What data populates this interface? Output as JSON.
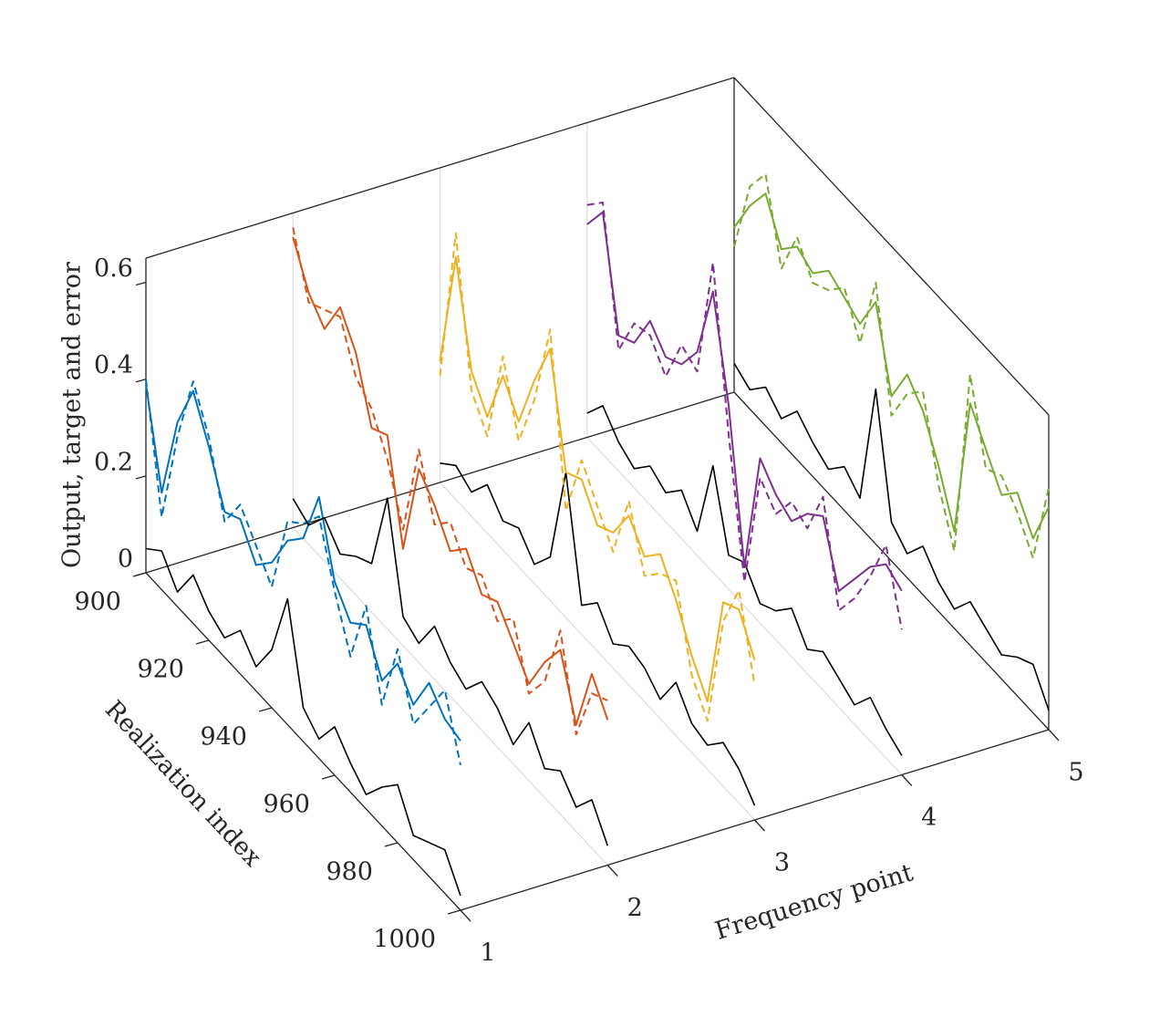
{
  "chart_data": {
    "type": "line3d",
    "zlabel": "Output, target and error",
    "xlabel": "Realization index",
    "ylabel": "Frequency point",
    "x": [
      900,
      905,
      910,
      915,
      920,
      925,
      930,
      935,
      940,
      945,
      950,
      955,
      960,
      965,
      970,
      975,
      980,
      985,
      990,
      995,
      1000
    ],
    "xlim": [
      900,
      1000
    ],
    "xticks": [
      900,
      920,
      940,
      960,
      980,
      1000
    ],
    "ylim": [
      1,
      5
    ],
    "yticks": [
      1,
      2,
      3,
      4,
      5
    ],
    "zlim": [
      0,
      0.65
    ],
    "zticks": [
      0,
      0.2,
      0.4,
      0.6
    ],
    "grid": true,
    "error_color": "#000000",
    "series": [
      {
        "y": 1,
        "color": "#0072bd",
        "output": [
          0.39,
          0.2,
          0.38,
          0.48,
          0.4,
          0.3,
          0.32,
          0.26,
          0.3,
          0.38,
          0.42,
          0.54,
          0.4,
          0.35,
          0.38,
          0.3,
          0.37,
          0.32,
          0.4,
          0.36,
          0.35
        ],
        "target": [
          0.4,
          0.15,
          0.35,
          0.5,
          0.42,
          0.28,
          0.35,
          0.3,
          0.25,
          0.42,
          0.45,
          0.5,
          0.38,
          0.28,
          0.42,
          0.25,
          0.4,
          0.28,
          0.35,
          0.42,
          0.3
        ],
        "error": [
          0.05,
          0.08,
          0.03,
          0.1,
          0.06,
          0.04,
          0.09,
          0.05,
          0.12,
          0.26,
          0.07,
          0.04,
          0.1,
          0.06,
          0.03,
          0.08,
          0.12,
          0.05,
          0.07,
          0.09,
          0.03
        ]
      },
      {
        "y": 2,
        "color": "#d95319",
        "output": [
          0.6,
          0.52,
          0.48,
          0.56,
          0.5,
          0.38,
          0.4,
          0.2,
          0.4,
          0.36,
          0.3,
          0.34,
          0.28,
          0.3,
          0.25,
          0.2,
          0.28,
          0.34,
          0.22,
          0.36,
          0.3
        ],
        "target": [
          0.62,
          0.5,
          0.52,
          0.54,
          0.45,
          0.42,
          0.35,
          0.24,
          0.44,
          0.32,
          0.36,
          0.3,
          0.32,
          0.26,
          0.3,
          0.18,
          0.24,
          0.38,
          0.2,
          0.32,
          0.34
        ],
        "error": [
          0.06,
          0.04,
          0.09,
          0.05,
          0.08,
          0.1,
          0.27,
          0.06,
          0.04,
          0.11,
          0.07,
          0.05,
          0.1,
          0.08,
          0.04,
          0.12,
          0.06,
          0.09,
          0.05,
          0.1,
          0.04
        ]
      },
      {
        "y": 3,
        "color": "#edb120",
        "output": [
          0.25,
          0.5,
          0.3,
          0.24,
          0.36,
          0.3,
          0.42,
          0.52,
          0.3,
          0.32,
          0.26,
          0.28,
          0.35,
          0.3,
          0.34,
          0.28,
          0.2,
          0.14,
          0.38,
          0.4,
          0.33
        ],
        "target": [
          0.22,
          0.55,
          0.26,
          0.2,
          0.4,
          0.26,
          0.38,
          0.56,
          0.22,
          0.36,
          0.3,
          0.24,
          0.38,
          0.26,
          0.3,
          0.32,
          0.16,
          0.1,
          0.34,
          0.44,
          0.28
        ],
        "error": [
          0.04,
          0.07,
          0.05,
          0.1,
          0.06,
          0.08,
          0.04,
          0.09,
          0.3,
          0.06,
          0.1,
          0.05,
          0.08,
          0.07,
          0.04,
          0.11,
          0.06,
          0.05,
          0.09,
          0.07,
          0.03
        ]
      },
      {
        "y": 4,
        "color": "#7e2f8e",
        "output": [
          0.44,
          0.5,
          0.28,
          0.3,
          0.38,
          0.34,
          0.36,
          0.42,
          0.58,
          0.38,
          0.08,
          0.34,
          0.3,
          0.28,
          0.33,
          0.36,
          0.24,
          0.3,
          0.36,
          0.4,
          0.38
        ],
        "target": [
          0.48,
          0.52,
          0.25,
          0.34,
          0.35,
          0.3,
          0.4,
          0.38,
          0.64,
          0.32,
          0.05,
          0.3,
          0.26,
          0.32,
          0.3,
          0.4,
          0.2,
          0.26,
          0.34,
          0.44,
          0.3
        ],
        "error": [
          0.05,
          0.1,
          0.06,
          0.04,
          0.08,
          0.06,
          0.1,
          0.05,
          0.22,
          0.07,
          0.09,
          0.04,
          0.06,
          0.1,
          0.05,
          0.08,
          0.06,
          0.04,
          0.09,
          0.06,
          0.04
        ]
      },
      {
        "y": 5,
        "color": "#77ac30",
        "output": [
          0.34,
          0.42,
          0.48,
          0.4,
          0.44,
          0.42,
          0.46,
          0.44,
          0.42,
          0.5,
          0.34,
          0.42,
          0.38,
          0.3,
          0.2,
          0.5,
          0.44,
          0.38,
          0.42,
          0.36,
          0.46
        ],
        "target": [
          0.3,
          0.46,
          0.52,
          0.36,
          0.46,
          0.4,
          0.42,
          0.46,
          0.38,
          0.54,
          0.3,
          0.38,
          0.42,
          0.26,
          0.16,
          0.56,
          0.4,
          0.42,
          0.38,
          0.32,
          0.5
        ],
        "error": [
          0.06,
          0.04,
          0.08,
          0.05,
          0.1,
          0.07,
          0.05,
          0.09,
          0.06,
          0.32,
          0.08,
          0.05,
          0.1,
          0.06,
          0.04,
          0.09,
          0.07,
          0.05,
          0.08,
          0.1,
          0.04
        ]
      }
    ]
  }
}
